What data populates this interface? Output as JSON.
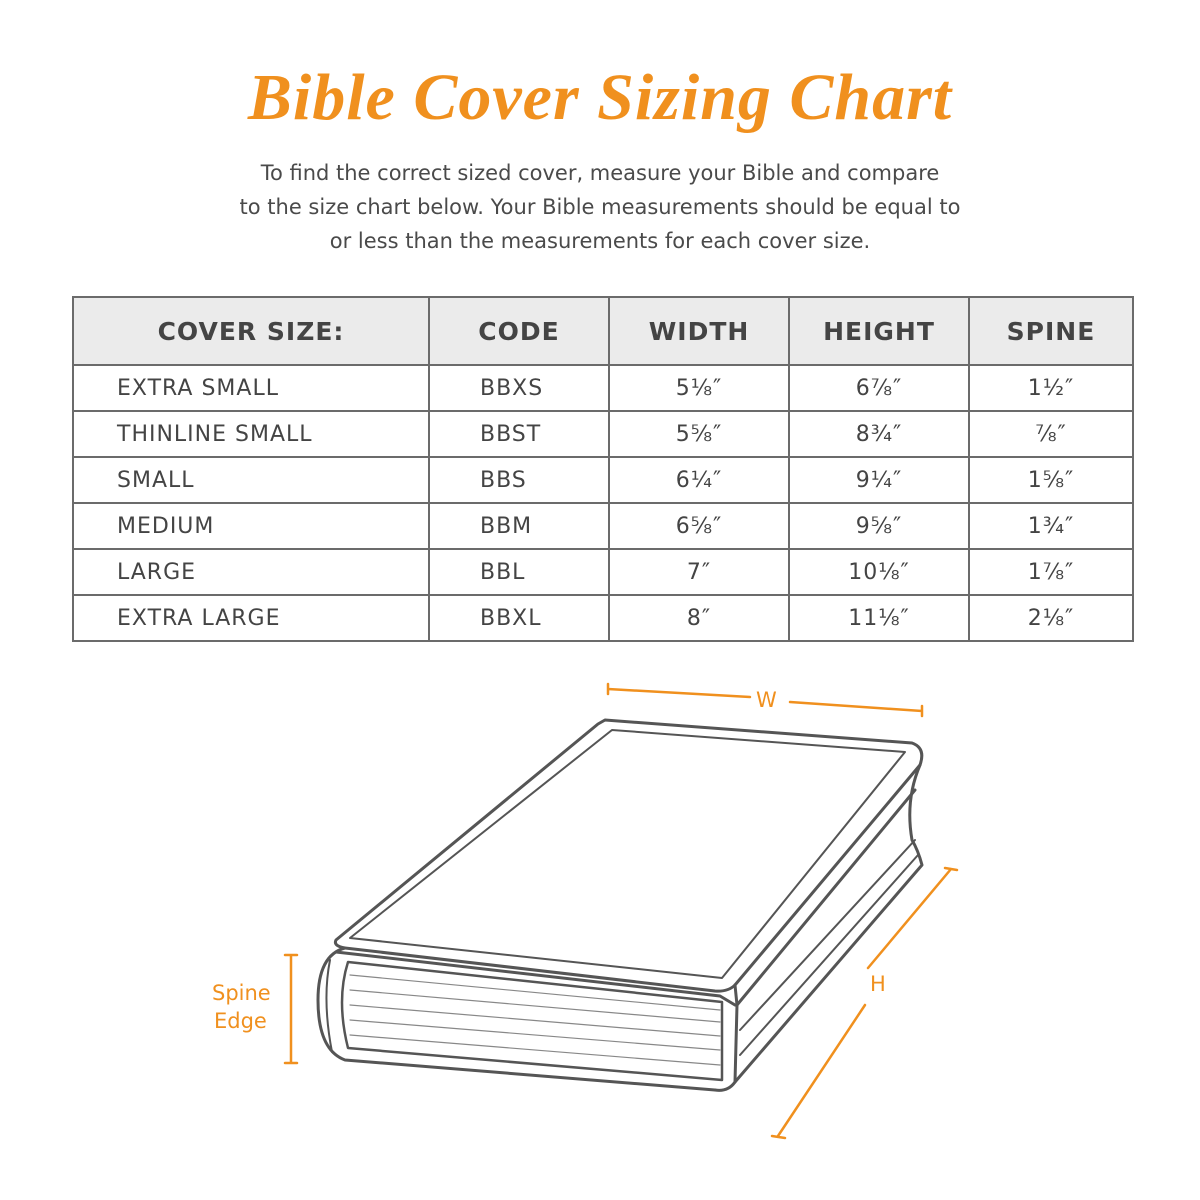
{
  "title": "Bible Cover Sizing Chart",
  "intro": [
    "To find the correct sized cover, measure your Bible and compare",
    "to the size chart below. Your Bible measurements should be equal to",
    "or less than the measurements for each cover size."
  ],
  "table": {
    "headers": [
      "COVER SIZE:",
      "CODE",
      "WIDTH",
      "HEIGHT",
      "SPINE"
    ],
    "rows": [
      [
        "EXTRA SMALL",
        "BBXS",
        "5⅛″",
        "6⅞″",
        "1½″"
      ],
      [
        "THINLINE SMALL",
        "BBST",
        "5⅝″",
        "8¾″",
        "⅞″"
      ],
      [
        "SMALL",
        "BBS",
        "6¼″",
        "9¼″",
        "1⅝″"
      ],
      [
        "MEDIUM",
        "BBM",
        "6⅝″",
        "9⅝″",
        "1¾″"
      ],
      [
        "LARGE",
        "BBL",
        "7″",
        "10⅛″",
        "1⅞″"
      ],
      [
        "EXTRA LARGE",
        "BBXL",
        "8″",
        "11⅛″",
        "2⅛″"
      ]
    ]
  },
  "diagram": {
    "width_label": "W",
    "height_label": "H",
    "spine_label_1": "Spine",
    "spine_label_2": "Edge"
  },
  "colors": {
    "accent": "#F0901E",
    "text": "#444444",
    "header_bg": "#EBEBEB"
  }
}
